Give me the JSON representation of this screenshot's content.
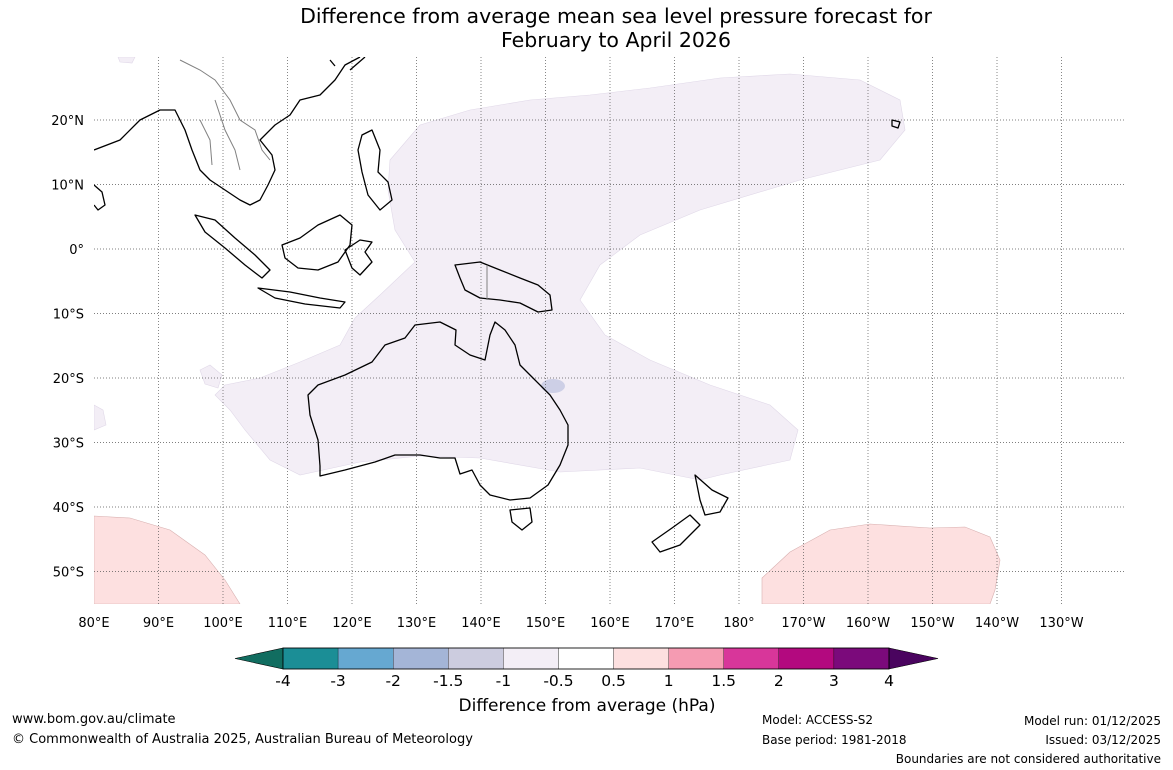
{
  "title": {
    "line1": "Difference from average mean sea level pressure forecast for",
    "line2": "February to April 2026"
  },
  "map": {
    "lat_ticks": [
      "20°N",
      "10°N",
      "0°",
      "10°S",
      "20°S",
      "30°S",
      "40°S",
      "50°S"
    ],
    "lon_ticks": [
      "80°E",
      "90°E",
      "100°E",
      "110°E",
      "120°E",
      "130°E",
      "140°E",
      "150°E",
      "160°E",
      "170°E",
      "180°",
      "170°W",
      "160°W",
      "150°W",
      "140°W",
      "130°W"
    ],
    "colors": {
      "land_outline": "#000000",
      "border": "#808080",
      "grid": "#555555",
      "anomaly_neg_0_5_to_1": "#f3eef6",
      "anomaly_neg_1_to_1_5": "#cdcfe6",
      "anomaly_pos_0_5_to_1": "#fde0e0"
    }
  },
  "colorbar": {
    "title": "Difference from average (hPa)",
    "ticks": [
      "-4",
      "-3",
      "-2",
      "-1.5",
      "-1",
      "-0.5",
      "0.5",
      "1",
      "1.5",
      "2",
      "3",
      "4"
    ],
    "colors": [
      "#116d60",
      "#1b8e96",
      "#66a8d1",
      "#a4b5d7",
      "#ccccdf",
      "#f3eef6",
      "#ffffff",
      "#fde0e0",
      "#f59bb2",
      "#d8369a",
      "#b3097f",
      "#7b0a7b",
      "#4a045f"
    ]
  },
  "footer": {
    "url": "www.bom.gov.au/climate",
    "copyright": "© Commonwealth of Australia 2025, Australian Bureau of Meteorology",
    "model": "Model: ACCESS-S2",
    "base_period": "Base period: 1981-2018",
    "model_run": "Model run: 01/12/2025",
    "issued": "Issued: 03/12/2025",
    "boundaries": "Boundaries are not considered authoritative"
  }
}
